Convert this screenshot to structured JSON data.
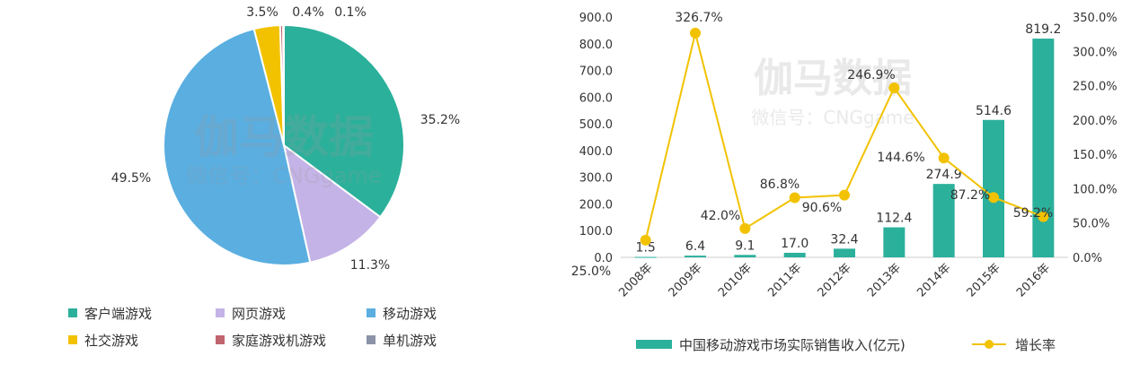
{
  "watermark": {
    "main": "伽马数据",
    "sub": "微信号：CNGgame"
  },
  "chart_data": [
    {
      "type": "pie",
      "categories": [
        "客户端游戏",
        "网页游戏",
        "移动游戏",
        "社交游戏",
        "家庭游戏机游戏",
        "单机游戏"
      ],
      "values": [
        35.2,
        11.3,
        49.5,
        3.5,
        0.4,
        0.1
      ],
      "value_labels": [
        "35.2%",
        "11.3%",
        "49.5%",
        "3.5%",
        "0.4%",
        "0.1%"
      ],
      "colors": [
        "#2bb09b",
        "#c4b3e6",
        "#5aaee0",
        "#f2c200",
        "#c0646e",
        "#8a93a8"
      ],
      "legend": "bottom"
    },
    {
      "type": "bar",
      "categories": [
        "2008年",
        "2009年",
        "2010年",
        "2011年",
        "2012年",
        "2013年",
        "2014年",
        "2015年",
        "2016年"
      ],
      "series": [
        {
          "name": "中国移动游戏市场实际销售收入(亿元)",
          "type": "bar",
          "axis": "left",
          "values": [
            1.5,
            6.4,
            9.1,
            17.0,
            32.4,
            112.4,
            274.9,
            514.6,
            819.2
          ],
          "labels": [
            "1.5",
            "6.4",
            "9.1",
            "17.0",
            "32.4",
            "112.4",
            "274.9",
            "514.6",
            "819.2"
          ],
          "color": "#2bb09b"
        },
        {
          "name": "增长率",
          "type": "line",
          "axis": "right",
          "values": [
            25.0,
            326.7,
            42.0,
            86.8,
            90.6,
            246.9,
            144.6,
            87.2,
            59.2
          ],
          "labels": [
            "25.0%",
            "326.7%",
            "42.0%",
            "86.8%",
            "90.6%",
            "246.9%",
            "144.6%",
            "87.2%",
            "59.2%"
          ],
          "color": "#f2c200"
        }
      ],
      "y_left": {
        "range": [
          0,
          900
        ],
        "ticks": [
          "0.0",
          "100.0",
          "200.0",
          "300.0",
          "400.0",
          "500.0",
          "600.0",
          "700.0",
          "800.0",
          "900.0"
        ]
      },
      "y_right": {
        "range": [
          0,
          350
        ],
        "ticks": [
          "0.0%",
          "50.0%",
          "100.0%",
          "150.0%",
          "200.0%",
          "250.0%",
          "300.0%",
          "350.0%"
        ]
      },
      "grid": false,
      "legend": "bottom"
    }
  ]
}
